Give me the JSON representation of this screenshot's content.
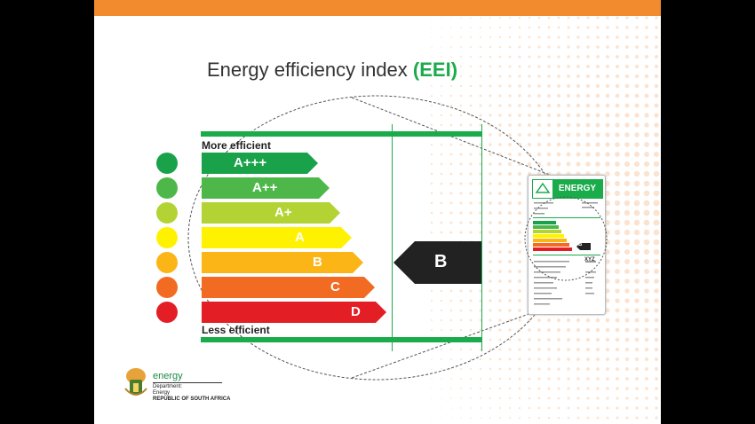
{
  "slide": {
    "title_prefix": "Energy efficiency index",
    "title_abbr": "(EEI)"
  },
  "scale": {
    "more_label": "More efficient",
    "less_label": "Less efficient",
    "rating_indicator": "B",
    "classes": [
      {
        "label": "A+++",
        "color": "#1aa24a"
      },
      {
        "label": "A++",
        "color": "#4db849"
      },
      {
        "label": "A+",
        "color": "#b3d335"
      },
      {
        "label": "A",
        "color": "#fff200"
      },
      {
        "label": "B",
        "color": "#fbb516"
      },
      {
        "label": "C",
        "color": "#f26b22"
      },
      {
        "label": "D",
        "color": "#e31e24"
      }
    ]
  },
  "label_card": {
    "heading": "ENERGY",
    "small_rating": "B",
    "code": "XYZ"
  },
  "logo": {
    "word": "energy",
    "line1": "Department:",
    "line2": "Energy",
    "line3": "REPUBLIC OF SOUTH AFRICA"
  },
  "colors": {
    "accent_orange": "#f28a2e",
    "accent_green": "#1aab4b",
    "indicator": "#222222"
  }
}
